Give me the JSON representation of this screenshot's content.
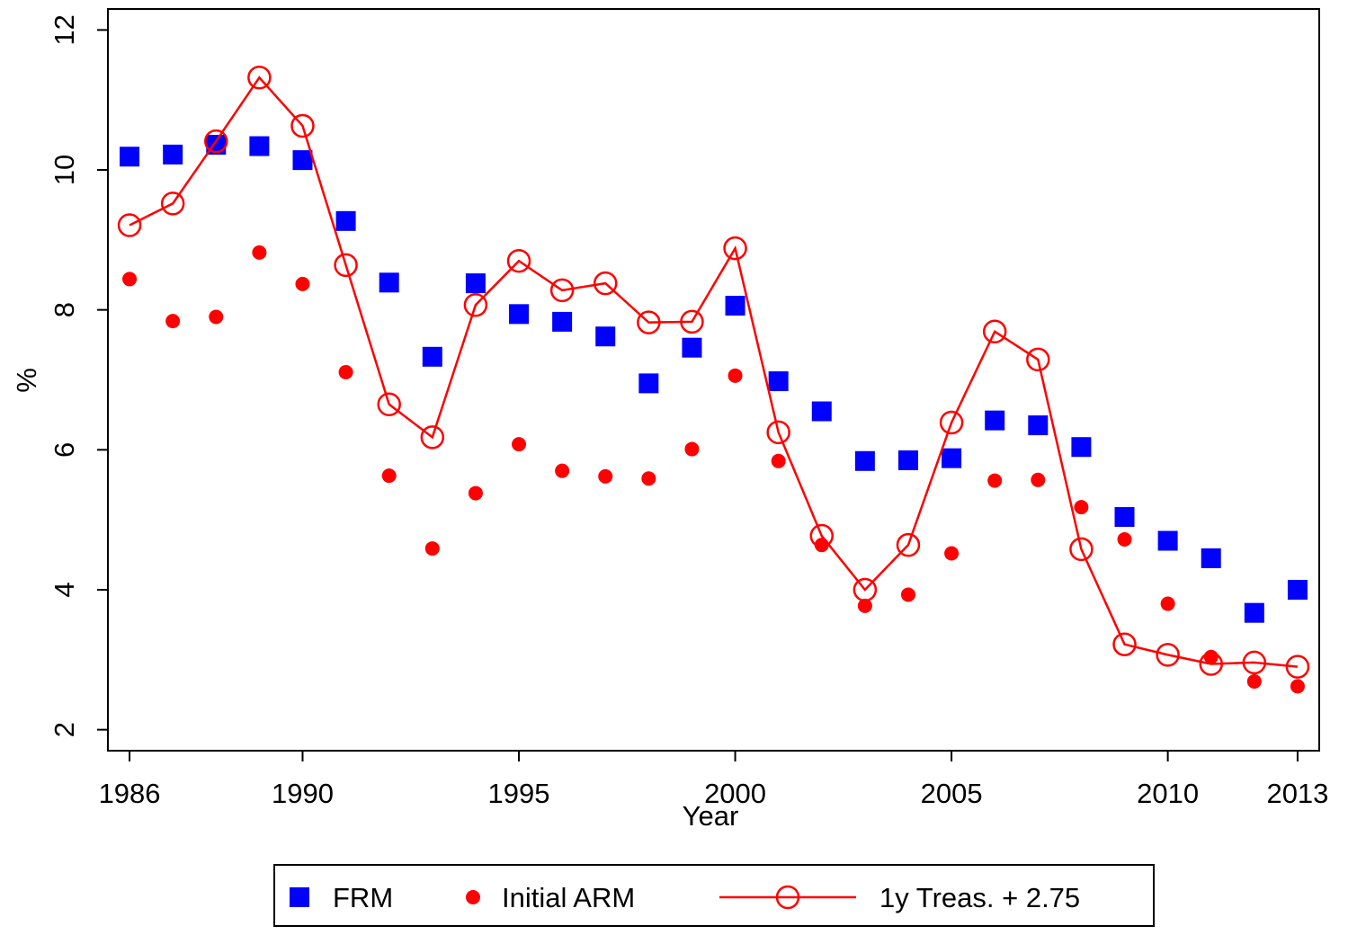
{
  "chart_data": {
    "type": "line",
    "x_label": "Year",
    "y_label": "%",
    "x": [
      1986,
      1987,
      1988,
      1989,
      1990,
      1991,
      1992,
      1993,
      1994,
      1995,
      1996,
      1997,
      1998,
      1999,
      2000,
      2001,
      2002,
      2003,
      2004,
      2005,
      2006,
      2007,
      2008,
      2009,
      2010,
      2011,
      2012,
      2013
    ],
    "series": [
      {
        "name": "FRM",
        "color": "#0000ff",
        "marker": "square",
        "line": false,
        "values": [
          10.19,
          10.22,
          10.36,
          10.34,
          10.14,
          9.27,
          8.39,
          7.33,
          8.38,
          7.94,
          7.83,
          7.62,
          6.95,
          7.46,
          8.06,
          6.98,
          6.55,
          5.84,
          5.85,
          5.88,
          6.42,
          6.35,
          6.04,
          5.04,
          4.7,
          4.45,
          3.67,
          4.0
        ]
      },
      {
        "name": "Initial ARM",
        "color": "#ff0000",
        "marker": "dot",
        "line": false,
        "values": [
          8.44,
          7.84,
          7.9,
          8.82,
          8.37,
          7.11,
          5.63,
          4.59,
          5.38,
          6.08,
          5.7,
          5.62,
          5.59,
          6.01,
          7.06,
          5.84,
          4.64,
          3.77,
          3.93,
          4.52,
          5.56,
          5.57,
          5.18,
          4.72,
          3.8,
          3.04,
          2.69,
          2.62
        ]
      },
      {
        "name": "1y Treas. + 2.75",
        "color": "#ff0000",
        "marker": "open-circle",
        "line": true,
        "values": [
          9.21,
          9.52,
          10.41,
          11.32,
          10.63,
          8.64,
          6.65,
          6.18,
          8.07,
          8.7,
          8.28,
          8.38,
          7.82,
          7.83,
          8.88,
          6.25,
          4.77,
          4.0,
          4.64,
          6.39,
          7.69,
          7.29,
          4.58,
          3.22,
          3.07,
          2.94,
          2.96,
          2.9
        ]
      }
    ],
    "xlim": [
      1985.5,
      2013.5
    ],
    "xticks": [
      1986,
      1990,
      1995,
      2000,
      2005,
      2010,
      2013
    ],
    "ylim": [
      1.7,
      12.3
    ],
    "yticks": [
      2,
      4,
      6,
      8,
      10,
      12
    ],
    "grid": false,
    "legend": "bottom"
  }
}
